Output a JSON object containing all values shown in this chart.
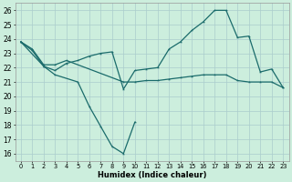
{
  "xlabel": "Humidex (Indice chaleur)",
  "bg_color": "#cceedd",
  "grid_color": "#aacccc",
  "line_color": "#1a6b6b",
  "ylim": [
    15.5,
    26.5
  ],
  "xlim": [
    -0.5,
    23.5
  ],
  "yticks": [
    16,
    17,
    18,
    19,
    20,
    21,
    22,
    23,
    24,
    25,
    26
  ],
  "xticks": [
    0,
    1,
    2,
    3,
    4,
    5,
    6,
    7,
    8,
    9,
    10,
    11,
    12,
    13,
    14,
    15,
    16,
    17,
    18,
    19,
    20,
    21,
    22,
    23
  ],
  "line1_x": [
    0,
    1,
    2,
    3,
    4,
    5,
    6,
    7,
    8,
    9,
    10,
    11,
    12,
    13,
    14,
    15,
    16,
    17,
    18,
    19,
    20,
    21,
    22,
    23
  ],
  "line1_y": [
    23.8,
    23.2,
    22.1,
    21.8,
    22.3,
    22.5,
    22.8,
    23.0,
    23.1,
    20.5,
    21.8,
    21.9,
    22.0,
    23.3,
    23.8,
    24.6,
    25.2,
    26.0,
    26.0,
    24.1,
    24.2,
    21.7,
    21.9,
    20.6
  ],
  "line2_x": [
    0,
    1,
    2,
    3,
    4,
    9,
    10,
    11,
    12,
    13,
    14,
    15,
    16,
    17,
    18,
    19,
    20,
    21,
    22,
    23
  ],
  "line2_y": [
    23.8,
    23.3,
    22.2,
    22.2,
    22.5,
    21.0,
    21.0,
    21.1,
    21.1,
    21.2,
    21.3,
    21.4,
    21.5,
    21.5,
    21.5,
    21.1,
    21.0,
    21.0,
    21.0,
    20.6
  ],
  "line3_x": [
    0,
    2,
    3,
    5,
    6,
    7,
    8,
    9,
    10
  ],
  "line3_y": [
    23.8,
    22.1,
    21.5,
    21.0,
    19.3,
    17.9,
    16.5,
    16.0,
    18.2
  ]
}
